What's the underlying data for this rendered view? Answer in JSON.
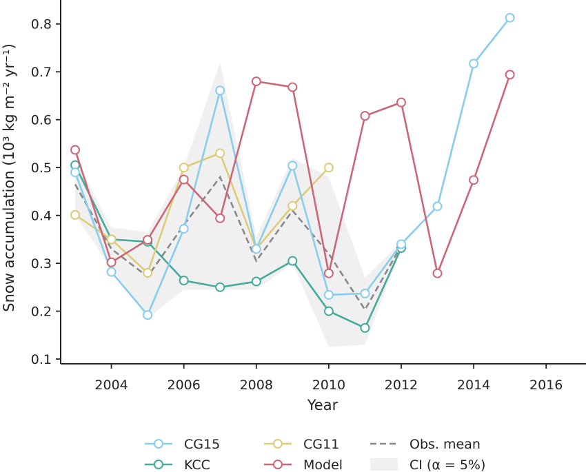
{
  "chart_data": {
    "type": "line",
    "xlabel": "Year",
    "ylabel": "Snow accumulation (10³ kg m⁻² yr⁻¹)",
    "xlim": [
      2002.6,
      2017.1
    ],
    "ylim": [
      0.09,
      0.85
    ],
    "xticks": [
      2004,
      2006,
      2008,
      2010,
      2012,
      2014,
      2016
    ],
    "yticks": [
      0.1,
      0.2,
      0.3,
      0.4,
      0.5,
      0.6,
      0.7,
      0.8
    ],
    "grid": false,
    "legend_position": "bottom",
    "series": [
      {
        "name": "CG15",
        "color": "#88CCEE",
        "style": "solid-marker",
        "x": [
          2003,
          2004,
          2005,
          2006,
          2007,
          2008,
          2009,
          2010,
          2011,
          2012,
          2013,
          2014,
          2015
        ],
        "y": [
          0.49,
          0.282,
          0.192,
          0.372,
          0.661,
          0.33,
          0.504,
          0.234,
          0.237,
          0.34,
          0.419,
          0.717,
          0.813
        ]
      },
      {
        "name": "KCC",
        "color": "#44AA99",
        "style": "solid-marker",
        "x": [
          2003,
          2004,
          2005,
          2006,
          2007,
          2008,
          2009,
          2010,
          2011,
          2012
        ],
        "y": [
          0.505,
          0.35,
          0.345,
          0.264,
          0.25,
          0.262,
          0.305,
          0.2,
          0.165,
          0.332
        ]
      },
      {
        "name": "CG11",
        "color": "#DDCC77",
        "style": "solid-marker",
        "x": [
          2003,
          2004,
          2005,
          2006,
          2007,
          2008,
          2009,
          2010
        ],
        "y": [
          0.401,
          0.35,
          0.28,
          0.5,
          0.53,
          0.33,
          0.42,
          0.5
        ]
      },
      {
        "name": "Model",
        "color": "#CC6677",
        "style": "solid-marker",
        "x": [
          2003,
          2004,
          2005,
          2006,
          2007,
          2008,
          2009,
          2010,
          2011,
          2012,
          2013,
          2014,
          2015
        ],
        "y": [
          0.537,
          0.302,
          0.349,
          0.475,
          0.394,
          0.68,
          0.668,
          0.279,
          0.608,
          0.636,
          0.279,
          0.474,
          0.694
        ]
      },
      {
        "name": "Obs. mean",
        "color": "#888888",
        "style": "dashed",
        "x": [
          2003,
          2004,
          2005,
          2006,
          2007,
          2008,
          2009,
          2010,
          2011,
          2012
        ],
        "y": [
          0.465,
          0.33,
          0.272,
          0.38,
          0.48,
          0.305,
          0.41,
          0.32,
          0.203,
          0.337
        ]
      }
    ],
    "ci": {
      "name": "CI (α = 5%)",
      "color": "#f0f0f0",
      "x": [
        2003,
        2004,
        2005,
        2006,
        2007,
        2008,
        2009,
        2010,
        2011,
        2012
      ],
      "upper": [
        0.52,
        0.375,
        0.365,
        0.5,
        0.72,
        0.355,
        0.52,
        0.48,
        0.27,
        0.345
      ],
      "lower": [
        0.4,
        0.29,
        0.185,
        0.245,
        0.245,
        0.245,
        0.3,
        0.125,
        0.13,
        0.33
      ]
    },
    "legend": [
      {
        "label": "CG15",
        "series": "CG15",
        "kind": "marker"
      },
      {
        "label": "CG11",
        "series": "CG11",
        "kind": "marker"
      },
      {
        "label": "Obs. mean",
        "series": "Obs. mean",
        "kind": "dashed"
      },
      {
        "label": "KCC",
        "series": "KCC",
        "kind": "marker"
      },
      {
        "label": "Model",
        "series": "Model",
        "kind": "marker"
      },
      {
        "label": "CI (α = 5%)",
        "series": "CI",
        "kind": "patch"
      }
    ]
  }
}
